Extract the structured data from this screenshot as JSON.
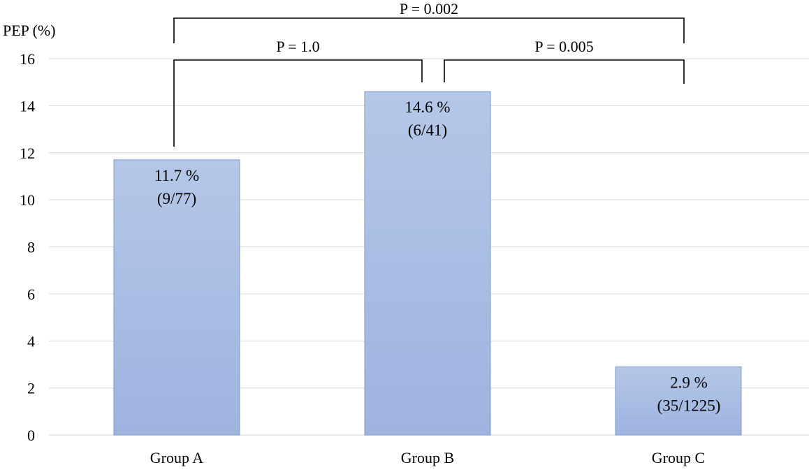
{
  "chart_data": {
    "type": "bar",
    "ylabel": "PEP (%)",
    "xlabel": "",
    "ylim": [
      0,
      16
    ],
    "yticks": [
      0,
      2,
      4,
      6,
      8,
      10,
      12,
      14,
      16
    ],
    "grid": true,
    "categories": [
      "Group A",
      "Group B",
      "Group C"
    ],
    "values": [
      11.7,
      14.6,
      2.9
    ],
    "data_labels": [
      {
        "percent": "11.7 %",
        "fraction": "(9/77)"
      },
      {
        "percent": "14.6 %",
        "fraction": "(6/41)"
      },
      {
        "percent": "2.9 %",
        "fraction": "(35/1225)"
      }
    ],
    "comparisons": [
      {
        "groups": [
          "Group A",
          "Group C"
        ],
        "label": "P = 0.002"
      },
      {
        "groups": [
          "Group A",
          "Group B"
        ],
        "label": "P = 1.0"
      },
      {
        "groups": [
          "Group B",
          "Group C"
        ],
        "label": "P = 0.005"
      }
    ],
    "bar_color_top": "#b4c7e7",
    "bar_color_bottom": "#9db4e0"
  }
}
